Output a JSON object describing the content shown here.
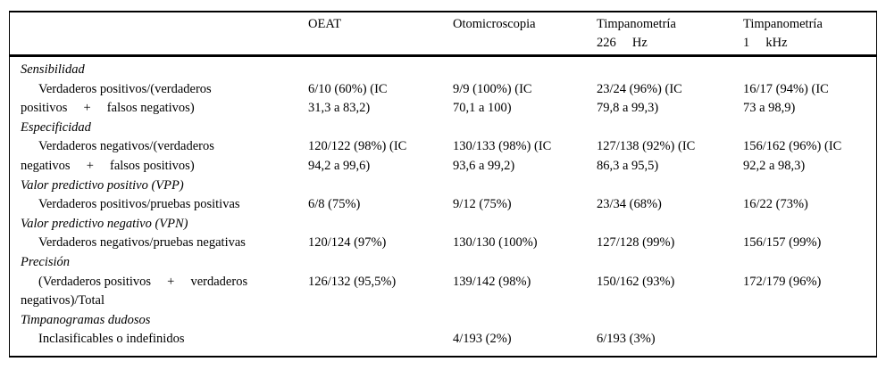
{
  "colors": {
    "text": "#000000",
    "border": "#000000",
    "background": "#ffffff"
  },
  "table": {
    "columns": [
      {
        "key": "row-label",
        "lines": []
      },
      {
        "key": "oeat",
        "lines": [
          "OEAT"
        ]
      },
      {
        "key": "otomicroscopia",
        "lines": [
          "Otomicroscopia"
        ]
      },
      {
        "key": "timpanometria-226hz",
        "lines": [
          "Timpanometría",
          "226     Hz"
        ]
      },
      {
        "key": "timpanometria-1khz",
        "lines": [
          "Timpanometría",
          "1     kHz"
        ]
      }
    ],
    "rows": [
      {
        "type": "section",
        "key": "sensibilidad",
        "label": "Sensibilidad"
      },
      {
        "type": "data",
        "key": "sensibilidad-values",
        "cells": [
          [
            "Verdaderos positivos/(verdaderos",
            "positivos     +     falsos negativos)"
          ],
          [
            "6/10 (60%) (IC",
            "31,3 a 83,2)"
          ],
          [
            "9/9 (100%) (IC",
            "70,1 a 100)"
          ],
          [
            "23/24 (96%) (IC",
            "79,8 a 99,3)"
          ],
          [
            "16/17 (94%) (IC",
            "73 a 98,9)"
          ]
        ]
      },
      {
        "type": "section",
        "key": "especificidad",
        "label": "Especificidad"
      },
      {
        "type": "data",
        "key": "especificidad-values",
        "cells": [
          [
            "Verdaderos negativos/(verdaderos",
            "negativos     +     falsos positivos)"
          ],
          [
            "120/122 (98%) (IC",
            "94,2 a 99,6)"
          ],
          [
            "130/133 (98%) (IC",
            "93,6 a 99,2)"
          ],
          [
            "127/138 (92%) (IC",
            "86,3 a 95,5)"
          ],
          [
            "156/162 (96%) (IC",
            "92,2 a 98,3)"
          ]
        ]
      },
      {
        "type": "section",
        "key": "vpp",
        "label": "Valor predictivo positivo (VPP)"
      },
      {
        "type": "data",
        "key": "vpp-values",
        "cells": [
          [
            "Verdaderos positivos/pruebas positivas"
          ],
          [
            "6/8 (75%)"
          ],
          [
            "9/12 (75%)"
          ],
          [
            "23/34 (68%)"
          ],
          [
            "16/22 (73%)"
          ]
        ]
      },
      {
        "type": "section",
        "key": "vpn",
        "label": "Valor predictivo negativo (VPN)"
      },
      {
        "type": "data",
        "key": "vpn-values",
        "cells": [
          [
            "Verdaderos negativos/pruebas negativas"
          ],
          [
            "120/124 (97%)"
          ],
          [
            "130/130 (100%)"
          ],
          [
            "127/128 (99%)"
          ],
          [
            "156/157 (99%)"
          ]
        ]
      },
      {
        "type": "section",
        "key": "precision",
        "label": "Precisión"
      },
      {
        "type": "data",
        "key": "precision-values",
        "cells": [
          [
            "(Verdaderos positivos     +     verdaderos",
            "negativos)/Total"
          ],
          [
            "126/132 (95,5%)"
          ],
          [
            "139/142 (98%)"
          ],
          [
            "150/162 (93%)"
          ],
          [
            "172/179 (96%)"
          ]
        ]
      },
      {
        "type": "section",
        "key": "timpanogramas-dudosos",
        "label": "Timpanogramas dudosos"
      },
      {
        "type": "data",
        "key": "timpanogramas-dudosos-values",
        "cells": [
          [
            "Inclasificables o indefinidos"
          ],
          [],
          [
            "4/193 (2%)"
          ],
          [
            "6/193 (3%)"
          ],
          []
        ]
      }
    ]
  }
}
